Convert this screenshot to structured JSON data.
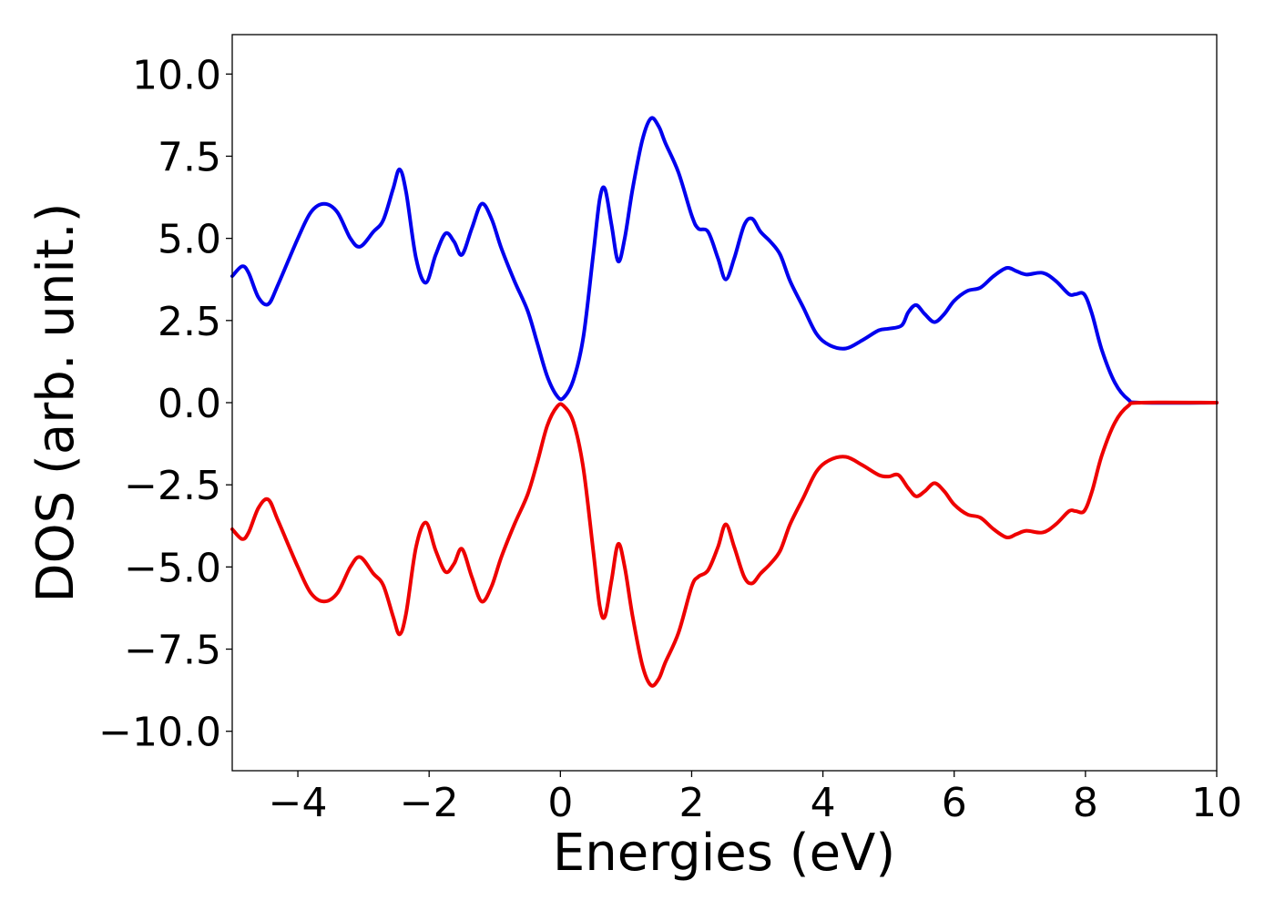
{
  "chart_data": {
    "type": "line",
    "title": "",
    "xlabel": "Energies (eV)",
    "ylabel": "DOS (arb. unit.)",
    "xlim": [
      -5,
      10
    ],
    "ylim": [
      -11.2,
      11.2
    ],
    "grid": false,
    "legend": "none",
    "x_ticks": [
      -4,
      -2,
      0,
      2,
      4,
      6,
      8,
      10
    ],
    "x_tick_labels": [
      "−4",
      "−2",
      "0",
      "2",
      "4",
      "6",
      "8",
      "10"
    ],
    "y_ticks": [
      10,
      7.5,
      5,
      2.5,
      0,
      -2.5,
      -5,
      -7.5,
      -10
    ],
    "y_tick_labels": [
      "10.0",
      "7.5",
      "5.0",
      "2.5",
      "0.0",
      "−2.5",
      "−5.0",
      "−7.5",
      "−10.0"
    ],
    "series": [
      {
        "color": "#0000ee",
        "points": [
          [
            -5.0,
            3.85
          ],
          [
            -4.85,
            4.15
          ],
          [
            -4.75,
            3.95
          ],
          [
            -4.6,
            3.2
          ],
          [
            -4.45,
            3.0
          ],
          [
            -4.3,
            3.6
          ],
          [
            -4.0,
            5.0
          ],
          [
            -3.8,
            5.8
          ],
          [
            -3.6,
            6.05
          ],
          [
            -3.4,
            5.8
          ],
          [
            -3.2,
            5.0
          ],
          [
            -3.05,
            4.75
          ],
          [
            -2.85,
            5.2
          ],
          [
            -2.7,
            5.55
          ],
          [
            -2.55,
            6.5
          ],
          [
            -2.45,
            7.1
          ],
          [
            -2.35,
            6.4
          ],
          [
            -2.2,
            4.4
          ],
          [
            -2.05,
            3.65
          ],
          [
            -1.9,
            4.5
          ],
          [
            -1.75,
            5.15
          ],
          [
            -1.62,
            4.9
          ],
          [
            -1.5,
            4.5
          ],
          [
            -1.35,
            5.3
          ],
          [
            -1.2,
            6.05
          ],
          [
            -1.05,
            5.6
          ],
          [
            -0.9,
            4.7
          ],
          [
            -0.7,
            3.7
          ],
          [
            -0.5,
            2.8
          ],
          [
            -0.35,
            1.8
          ],
          [
            -0.2,
            0.8
          ],
          [
            -0.05,
            0.2
          ],
          [
            0.05,
            0.15
          ],
          [
            0.2,
            0.7
          ],
          [
            0.35,
            2.0
          ],
          [
            0.5,
            4.5
          ],
          [
            0.6,
            6.2
          ],
          [
            0.68,
            6.5
          ],
          [
            0.78,
            5.4
          ],
          [
            0.88,
            4.3
          ],
          [
            0.98,
            5.0
          ],
          [
            1.1,
            6.5
          ],
          [
            1.25,
            8.0
          ],
          [
            1.38,
            8.65
          ],
          [
            1.5,
            8.4
          ],
          [
            1.6,
            7.9
          ],
          [
            1.8,
            7.0
          ],
          [
            2.0,
            5.7
          ],
          [
            2.1,
            5.3
          ],
          [
            2.25,
            5.2
          ],
          [
            2.4,
            4.4
          ],
          [
            2.52,
            3.75
          ],
          [
            2.65,
            4.4
          ],
          [
            2.8,
            5.4
          ],
          [
            2.92,
            5.6
          ],
          [
            3.05,
            5.2
          ],
          [
            3.2,
            4.9
          ],
          [
            3.35,
            4.5
          ],
          [
            3.5,
            3.7
          ],
          [
            3.7,
            2.9
          ],
          [
            3.9,
            2.1
          ],
          [
            4.1,
            1.75
          ],
          [
            4.35,
            1.65
          ],
          [
            4.6,
            1.9
          ],
          [
            4.85,
            2.2
          ],
          [
            5.0,
            2.25
          ],
          [
            5.2,
            2.35
          ],
          [
            5.3,
            2.75
          ],
          [
            5.42,
            2.97
          ],
          [
            5.55,
            2.7
          ],
          [
            5.7,
            2.45
          ],
          [
            5.85,
            2.7
          ],
          [
            6.0,
            3.1
          ],
          [
            6.2,
            3.4
          ],
          [
            6.4,
            3.5
          ],
          [
            6.6,
            3.85
          ],
          [
            6.8,
            4.1
          ],
          [
            6.95,
            4.0
          ],
          [
            7.1,
            3.9
          ],
          [
            7.35,
            3.95
          ],
          [
            7.55,
            3.7
          ],
          [
            7.75,
            3.3
          ],
          [
            7.85,
            3.3
          ],
          [
            7.98,
            3.3
          ],
          [
            8.1,
            2.7
          ],
          [
            8.25,
            1.6
          ],
          [
            8.45,
            0.6
          ],
          [
            8.65,
            0.1
          ],
          [
            8.85,
            0.0
          ],
          [
            10.0,
            0.0
          ]
        ]
      },
      {
        "color": "#ee0000",
        "points": [
          [
            -5.0,
            -3.85
          ],
          [
            -4.85,
            -4.15
          ],
          [
            -4.75,
            -3.95
          ],
          [
            -4.6,
            -3.2
          ],
          [
            -4.45,
            -2.95
          ],
          [
            -4.3,
            -3.6
          ],
          [
            -4.0,
            -5.0
          ],
          [
            -3.8,
            -5.8
          ],
          [
            -3.6,
            -6.05
          ],
          [
            -3.4,
            -5.8
          ],
          [
            -3.2,
            -5.0
          ],
          [
            -3.05,
            -4.7
          ],
          [
            -2.85,
            -5.2
          ],
          [
            -2.7,
            -5.55
          ],
          [
            -2.55,
            -6.5
          ],
          [
            -2.45,
            -7.05
          ],
          [
            -2.35,
            -6.4
          ],
          [
            -2.2,
            -4.4
          ],
          [
            -2.05,
            -3.65
          ],
          [
            -1.9,
            -4.5
          ],
          [
            -1.75,
            -5.15
          ],
          [
            -1.62,
            -4.9
          ],
          [
            -1.5,
            -4.45
          ],
          [
            -1.35,
            -5.3
          ],
          [
            -1.2,
            -6.05
          ],
          [
            -1.05,
            -5.6
          ],
          [
            -0.9,
            -4.7
          ],
          [
            -0.7,
            -3.7
          ],
          [
            -0.5,
            -2.8
          ],
          [
            -0.35,
            -1.8
          ],
          [
            -0.2,
            -0.7
          ],
          [
            -0.05,
            -0.12
          ],
          [
            0.05,
            -0.1
          ],
          [
            0.2,
            -0.6
          ],
          [
            0.35,
            -2.0
          ],
          [
            0.5,
            -4.5
          ],
          [
            0.6,
            -6.2
          ],
          [
            0.68,
            -6.5
          ],
          [
            0.78,
            -5.4
          ],
          [
            0.88,
            -4.3
          ],
          [
            0.98,
            -5.0
          ],
          [
            1.1,
            -6.5
          ],
          [
            1.25,
            -8.0
          ],
          [
            1.38,
            -8.6
          ],
          [
            1.5,
            -8.4
          ],
          [
            1.6,
            -7.9
          ],
          [
            1.8,
            -7.0
          ],
          [
            2.0,
            -5.6
          ],
          [
            2.1,
            -5.3
          ],
          [
            2.25,
            -5.1
          ],
          [
            2.4,
            -4.4
          ],
          [
            2.52,
            -3.7
          ],
          [
            2.65,
            -4.4
          ],
          [
            2.8,
            -5.3
          ],
          [
            2.92,
            -5.5
          ],
          [
            3.05,
            -5.2
          ],
          [
            3.2,
            -4.9
          ],
          [
            3.35,
            -4.5
          ],
          [
            3.5,
            -3.7
          ],
          [
            3.7,
            -2.9
          ],
          [
            3.9,
            -2.1
          ],
          [
            4.1,
            -1.75
          ],
          [
            4.35,
            -1.65
          ],
          [
            4.6,
            -1.9
          ],
          [
            4.85,
            -2.2
          ],
          [
            5.0,
            -2.25
          ],
          [
            5.15,
            -2.2
          ],
          [
            5.3,
            -2.6
          ],
          [
            5.42,
            -2.85
          ],
          [
            5.55,
            -2.7
          ],
          [
            5.7,
            -2.45
          ],
          [
            5.85,
            -2.7
          ],
          [
            6.0,
            -3.1
          ],
          [
            6.2,
            -3.4
          ],
          [
            6.4,
            -3.5
          ],
          [
            6.6,
            -3.85
          ],
          [
            6.8,
            -4.1
          ],
          [
            6.95,
            -4.0
          ],
          [
            7.1,
            -3.9
          ],
          [
            7.35,
            -3.95
          ],
          [
            7.55,
            -3.7
          ],
          [
            7.75,
            -3.3
          ],
          [
            7.85,
            -3.3
          ],
          [
            7.98,
            -3.3
          ],
          [
            8.1,
            -2.7
          ],
          [
            8.25,
            -1.6
          ],
          [
            8.45,
            -0.6
          ],
          [
            8.65,
            -0.1
          ],
          [
            8.85,
            0.0
          ],
          [
            10.0,
            0.0
          ]
        ]
      }
    ]
  }
}
